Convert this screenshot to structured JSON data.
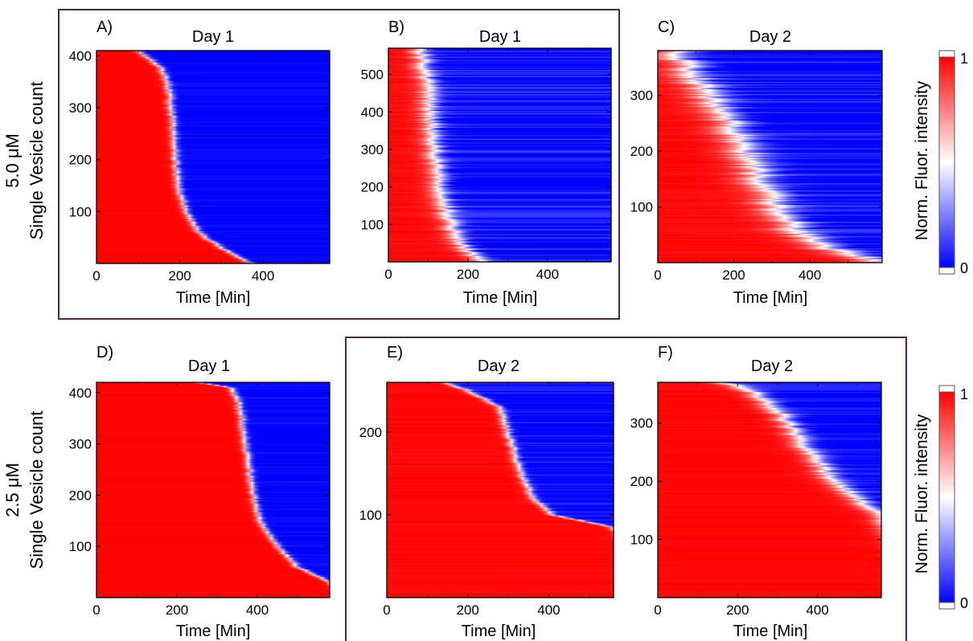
{
  "colors": {
    "high": "#ff0000",
    "mid": "#ffffff",
    "low": "#0000ff",
    "group_frame": "#4a2a4a"
  },
  "rows": [
    {
      "ylabel_line1": "5.0 μM",
      "ylabel_line2": "Single Vesicle count"
    },
    {
      "ylabel_line1": "2.5 μM",
      "ylabel_line2": "Single Vesicle count"
    }
  ],
  "colorbars": [
    {
      "label": "Norm. Fluor. intensity",
      "max_label": "1",
      "min_label": "0",
      "range": [
        0,
        1
      ]
    },
    {
      "label": "Norm. Fluor. intensity",
      "max_label": "1",
      "min_label": "0",
      "range": [
        0,
        1
      ]
    }
  ],
  "chart_data": [
    {
      "panel": "A)",
      "title": "Day 1",
      "type": "heatmap",
      "xlabel": "Time [Min]",
      "xlim": [
        0,
        560
      ],
      "ylim": [
        0,
        410
      ],
      "xticks": [
        0,
        200,
        400
      ],
      "yticks": [
        100,
        200,
        300,
        400
      ],
      "transition_profile": [
        [
          410,
          100
        ],
        [
          380,
          150
        ],
        [
          350,
          170
        ],
        [
          300,
          180
        ],
        [
          200,
          190
        ],
        [
          150,
          195
        ],
        [
          100,
          215
        ],
        [
          60,
          245
        ],
        [
          30,
          300
        ],
        [
          0,
          370
        ]
      ],
      "transition_width_min": 12,
      "streak_density": 0.15
    },
    {
      "panel": "B)",
      "title": "Day 1",
      "type": "heatmap",
      "xlabel": "Time [Min]",
      "xlim": [
        0,
        560
      ],
      "ylim": [
        0,
        570
      ],
      "xticks": [
        0,
        200,
        400
      ],
      "yticks": [
        100,
        200,
        300,
        400,
        500
      ],
      "transition_profile": [
        [
          570,
          80
        ],
        [
          500,
          95
        ],
        [
          400,
          105
        ],
        [
          300,
          115
        ],
        [
          200,
          130
        ],
        [
          100,
          155
        ],
        [
          50,
          180
        ],
        [
          20,
          210
        ],
        [
          0,
          240
        ]
      ],
      "transition_width_min": 35,
      "streak_density": 0.5
    },
    {
      "panel": "C)",
      "title": "Day 2",
      "type": "heatmap",
      "xlabel": "Time [Min]",
      "xlim": [
        0,
        590
      ],
      "ylim": [
        0,
        380
      ],
      "xticks": [
        0,
        200,
        400
      ],
      "yticks": [
        100,
        200,
        300
      ],
      "transition_profile": [
        [
          380,
          40
        ],
        [
          350,
          80
        ],
        [
          300,
          130
        ],
        [
          250,
          190
        ],
        [
          200,
          230
        ],
        [
          150,
          270
        ],
        [
          100,
          310
        ],
        [
          60,
          360
        ],
        [
          30,
          430
        ],
        [
          0,
          590
        ]
      ],
      "transition_width_min": 70,
      "streak_density": 0.45
    },
    {
      "panel": "D)",
      "title": "Day 1",
      "type": "heatmap",
      "xlabel": "Time [Min]",
      "xlim": [
        0,
        580
      ],
      "ylim": [
        0,
        420
      ],
      "xticks": [
        0,
        200,
        400
      ],
      "yticks": [
        100,
        200,
        300,
        400
      ],
      "transition_profile": [
        [
          420,
          250
        ],
        [
          410,
          335
        ],
        [
          380,
          355
        ],
        [
          300,
          370
        ],
        [
          200,
          390
        ],
        [
          150,
          405
        ],
        [
          100,
          450
        ],
        [
          60,
          500
        ],
        [
          30,
          580
        ],
        [
          0,
          620
        ]
      ],
      "transition_width_min": 12,
      "streak_density": 0.15
    },
    {
      "panel": "E)",
      "title": "Day 2",
      "type": "heatmap",
      "xlabel": "Time [Min]",
      "xlim": [
        0,
        560
      ],
      "ylim": [
        0,
        260
      ],
      "xticks": [
        0,
        200,
        400
      ],
      "yticks": [
        100,
        200
      ],
      "transition_profile": [
        [
          260,
          140
        ],
        [
          250,
          200
        ],
        [
          230,
          280
        ],
        [
          200,
          300
        ],
        [
          150,
          330
        ],
        [
          120,
          360
        ],
        [
          100,
          410
        ],
        [
          85,
          560
        ],
        [
          0,
          700
        ]
      ],
      "transition_width_min": 15,
      "streak_density": 0.35
    },
    {
      "panel": "F)",
      "title": "Day 2",
      "type": "heatmap",
      "xlabel": "Time [Min]",
      "xlim": [
        0,
        560
      ],
      "ylim": [
        0,
        370
      ],
      "xticks": [
        0,
        200,
        400
      ],
      "yticks": [
        100,
        200,
        300
      ],
      "transition_profile": [
        [
          370,
          160
        ],
        [
          360,
          220
        ],
        [
          340,
          270
        ],
        [
          300,
          330
        ],
        [
          250,
          380
        ],
        [
          200,
          440
        ],
        [
          160,
          520
        ],
        [
          140,
          560
        ],
        [
          0,
          700
        ]
      ],
      "transition_width_min": 40,
      "streak_density": 0.35
    }
  ]
}
